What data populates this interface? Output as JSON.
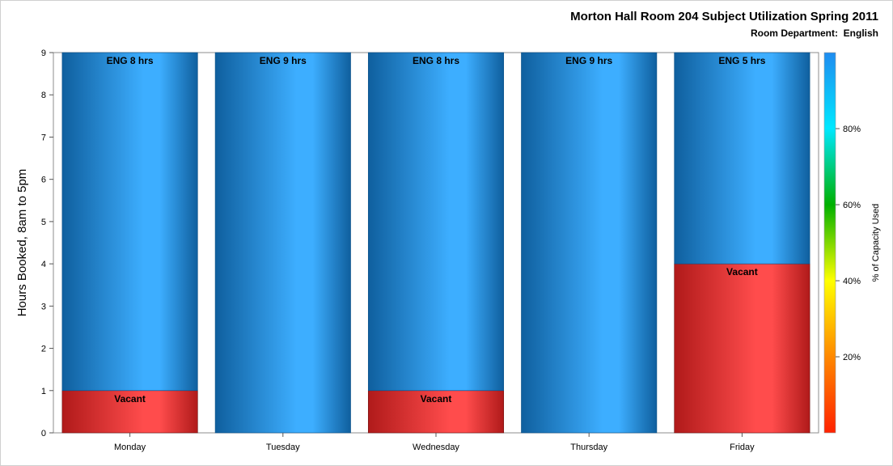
{
  "chart_data": {
    "type": "bar",
    "title": "Morton Hall Room 204 Subject Utilization Spring 2011",
    "subtitle": "Room Department:  English",
    "xlabel": "",
    "ylabel": "Hours Booked, 8am to 5pm",
    "ylim": [
      0,
      9
    ],
    "yticks": [
      0,
      1,
      2,
      3,
      4,
      5,
      6,
      7,
      8,
      9
    ],
    "categories": [
      "Monday",
      "Tuesday",
      "Wednesday",
      "Thursday",
      "Friday"
    ],
    "stacked": true,
    "series": [
      {
        "name": "Vacant",
        "values": [
          1,
          0,
          1,
          0,
          4
        ],
        "labels": [
          "Vacant",
          "",
          "Vacant",
          "",
          "Vacant"
        ]
      },
      {
        "name": "ENG",
        "values": [
          8,
          9,
          8,
          9,
          5
        ],
        "labels": [
          "ENG 8 hrs",
          "ENG 9 hrs",
          "ENG 8 hrs",
          "ENG 9 hrs",
          "ENG 5 hrs"
        ]
      }
    ],
    "colorbar": {
      "label": "% of Capacity Used",
      "ticks": [
        "20%",
        "40%",
        "60%",
        "80%"
      ],
      "tick_values": [
        20,
        40,
        60,
        80
      ],
      "range": [
        0,
        100
      ],
      "colors": [
        "#ff2200",
        "#ff8800",
        "#ffff00",
        "#00b000",
        "#00e8ff",
        "#1f8cf0"
      ]
    },
    "colors": {
      "booked": "#3daeff",
      "booked_dark": "#0f5f9e",
      "vacant": "#ff4c4c",
      "vacant_dark": "#b01a1a"
    },
    "grid": false,
    "legend": "none"
  }
}
